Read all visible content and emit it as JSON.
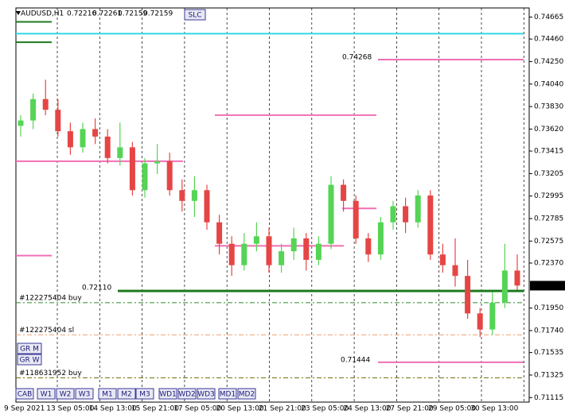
{
  "header": {
    "symbol": "AUDUSD,H1",
    "quote": [
      0.72216,
      0.72261,
      0.72159,
      0.72159
    ]
  },
  "buttons": {
    "top": [
      "SLC"
    ],
    "side": [
      "GR M",
      "GR W"
    ],
    "bottom": [
      "CAB",
      "W1",
      "W2",
      "W3",
      "M1",
      "M2",
      "M3",
      "WD1",
      "WD2",
      "WD3",
      "MD1",
      "MD2"
    ]
  },
  "chart_data": {
    "type": "candlestick",
    "open": [
      0.7365,
      0.737,
      0.739,
      0.738,
      0.736,
      0.7345,
      0.7362,
      0.7355,
      0.7335,
      0.7345,
      0.7305,
      0.733,
      0.7332,
      0.7305,
      0.7295,
      0.7305,
      0.7275,
      0.7255,
      0.7235,
      0.7255,
      0.7262,
      0.7235,
      0.7248,
      0.726,
      0.724,
      0.7255,
      0.731,
      0.7295,
      0.726,
      0.7245,
      0.7275,
      0.729,
      0.7275,
      0.73,
      0.7245,
      0.7235,
      0.7225,
      0.719,
      0.7175,
      0.72,
      0.723
    ],
    "high": [
      0.7375,
      0.7395,
      0.7408,
      0.739,
      0.7368,
      0.7368,
      0.7372,
      0.7362,
      0.7368,
      0.735,
      0.7335,
      0.7348,
      0.734,
      0.7315,
      0.7318,
      0.731,
      0.7282,
      0.7262,
      0.7265,
      0.7275,
      0.727,
      0.7255,
      0.727,
      0.7265,
      0.7262,
      0.7318,
      0.7315,
      0.73,
      0.7265,
      0.728,
      0.7295,
      0.7298,
      0.7305,
      0.7305,
      0.7255,
      0.726,
      0.724,
      0.7195,
      0.721,
      0.7255,
      0.7245
    ],
    "low": [
      0.7355,
      0.7362,
      0.7375,
      0.7355,
      0.7338,
      0.734,
      0.7348,
      0.733,
      0.7328,
      0.73,
      0.7298,
      0.732,
      0.73,
      0.7285,
      0.728,
      0.7268,
      0.7245,
      0.7225,
      0.723,
      0.7248,
      0.7228,
      0.7228,
      0.724,
      0.723,
      0.7235,
      0.725,
      0.7285,
      0.7255,
      0.7238,
      0.724,
      0.7268,
      0.7265,
      0.727,
      0.724,
      0.7228,
      0.7215,
      0.7185,
      0.7168,
      0.717,
      0.7195,
      0.7212
    ],
    "close": [
      0.737,
      0.739,
      0.738,
      0.736,
      0.7345,
      0.7362,
      0.7355,
      0.7335,
      0.7345,
      0.7305,
      0.733,
      0.7332,
      0.7305,
      0.7295,
      0.7305,
      0.7275,
      0.7255,
      0.7235,
      0.7255,
      0.7262,
      0.7235,
      0.7248,
      0.726,
      0.724,
      0.7255,
      0.731,
      0.7295,
      0.726,
      0.7245,
      0.7275,
      0.729,
      0.7275,
      0.73,
      0.7245,
      0.7235,
      0.7225,
      0.719,
      0.7175,
      0.72,
      0.723,
      0.7216
    ],
    "up_color": "#55d455",
    "down_color": "#e64545",
    "x_labels": [
      "9 Sep 2021",
      "13 Sep 05:00",
      "14 Sep 13:00",
      "15 Sep 21:00",
      "17 Sep 05:00",
      "20 Sep 13:00",
      "21 Sep 21:00",
      "23 Sep 05:00",
      "24 Sep 13:00",
      "27 Sep 21:00",
      "29 Sep 05:00",
      "30 Sep 13:00"
    ],
    "ylim": [
      0.7108,
      0.7475
    ],
    "yticks": [
      0.74665,
      {
        "value": 0.7446,
        "label": "0.74460"
      },
      {
        "value": 0.7425,
        "label": "0.74250"
      },
      {
        "value": 0.7404,
        "label": "0.74040"
      },
      {
        "value": 0.7383,
        "label": "0.73830"
      },
      {
        "value": 0.7362,
        "label": "0.73620"
      },
      0.73415,
      0.73205,
      0.72995,
      0.72785,
      0.72575,
      {
        "value": 0.7237,
        "label": "0.72370"
      },
      {
        "value": 0.7195,
        "label": "0.71950"
      },
      {
        "value": 0.7174,
        "label": "0.71740"
      },
      0.71535,
      0.71325,
      0.71115
    ],
    "last_price": 0.72159,
    "levels": [
      {
        "value": 0.7451,
        "color": "#33d6e6"
      },
      {
        "value": 0.7462,
        "color": "#1f7a1f"
      },
      {
        "value": 0.7443,
        "color": "#1f7a1f"
      },
      {
        "value": 0.74268,
        "label": "0.74268",
        "color": "#f06fb4"
      },
      {
        "value": 0.7375,
        "color": "#f06fb4"
      },
      {
        "value": 0.7332,
        "color": "#f06fb4"
      },
      {
        "value": 0.7288,
        "color": "#f06fb4"
      },
      {
        "value": 0.7253,
        "color": "#f06fb4"
      },
      {
        "value": 0.7244,
        "color": "#f06fb4"
      },
      {
        "value": 0.7211,
        "label": "0.72110",
        "color": "#1e7a1e"
      },
      {
        "value": 0.71444,
        "label": "0.71444",
        "color": "#f06fb4"
      },
      {
        "value": 0.72,
        "label": "#122275404 buy",
        "color": "#2e8b2e",
        "dashed": true
      },
      {
        "value": 0.717,
        "label": "#122275404 sl",
        "color": "#f0a070",
        "dashed": true
      },
      {
        "value": 0.713,
        "label": "#118631952 buy",
        "color": "#6b6b00",
        "dashed": true
      }
    ]
  }
}
